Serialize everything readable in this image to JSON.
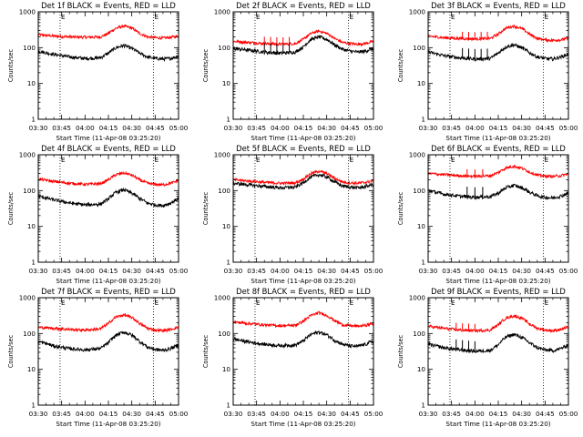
{
  "figure": {
    "xlabel": "Start Time (11-Apr-08 03:25:20)",
    "ylabel": "Counts/sec",
    "x_tick_labels": [
      "03:30",
      "03:45",
      "04:00",
      "04:15",
      "04:30",
      "04:45",
      "05:00"
    ],
    "y_tick_labels": [
      "1",
      "10",
      "100",
      "1000"
    ],
    "marker_label": "E",
    "colors": {
      "events": "#000000",
      "lld": "#ff0000",
      "axes": "#000000",
      "background": "#ffffff"
    }
  },
  "chart_data": [
    {
      "type": "line",
      "title": "Det 1f BLACK = Events, RED = LLD",
      "xlabel": "Start Time (11-Apr-08 03:25:20)",
      "ylabel": "Counts/sec",
      "x_unit": "minutes after 03:30",
      "xlim": [
        0,
        90
      ],
      "ylim": [
        1,
        1000
      ],
      "y_scale": "log",
      "marker_lines_x": [
        14,
        74
      ],
      "series": [
        {
          "name": "LLD",
          "color": "#ff0000",
          "x": [
            0,
            10,
            20,
            30,
            40,
            45,
            50,
            55,
            60,
            65,
            70,
            75,
            80,
            85,
            90
          ],
          "y": [
            230,
            210,
            200,
            195,
            200,
            250,
            350,
            400,
            350,
            250,
            200,
            190,
            185,
            195,
            210
          ]
        },
        {
          "name": "Events",
          "color": "#000000",
          "x": [
            0,
            10,
            20,
            30,
            40,
            45,
            50,
            55,
            60,
            65,
            70,
            75,
            80,
            85,
            90
          ],
          "y": [
            80,
            65,
            55,
            50,
            52,
            70,
            100,
            115,
            95,
            70,
            55,
            50,
            48,
            50,
            58
          ],
          "spikes_x": []
        }
      ]
    },
    {
      "type": "line",
      "title": "Det 2f BLACK = Events, RED = LLD",
      "xlabel": "Start Time (11-Apr-08 03:25:20)",
      "ylabel": "Counts/sec",
      "x_unit": "minutes after 03:30",
      "xlim": [
        0,
        90
      ],
      "ylim": [
        1,
        1000
      ],
      "y_scale": "log",
      "marker_lines_x": [
        14,
        74
      ],
      "series": [
        {
          "name": "LLD",
          "color": "#ff0000",
          "x": [
            0,
            10,
            20,
            30,
            40,
            45,
            50,
            55,
            60,
            65,
            70,
            75,
            80,
            85,
            90
          ],
          "y": [
            150,
            140,
            130,
            125,
            130,
            170,
            250,
            290,
            250,
            180,
            140,
            130,
            125,
            130,
            150
          ]
        },
        {
          "name": "Events",
          "color": "#000000",
          "x": [
            0,
            10,
            20,
            30,
            40,
            45,
            50,
            55,
            60,
            65,
            70,
            75,
            80,
            85,
            90
          ],
          "y": [
            95,
            85,
            75,
            70,
            75,
            105,
            170,
            200,
            170,
            120,
            90,
            80,
            75,
            80,
            95
          ],
          "spikes_x": [
            20,
            24,
            28,
            32,
            36
          ]
        }
      ]
    },
    {
      "type": "line",
      "title": "Det 3f BLACK = Events, RED = LLD",
      "xlabel": "Start Time (11-Apr-08 03:25:20)",
      "ylabel": "Counts/sec",
      "x_unit": "minutes after 03:30",
      "xlim": [
        0,
        90
      ],
      "ylim": [
        1,
        1000
      ],
      "y_scale": "log",
      "marker_lines_x": [
        14,
        74
      ],
      "series": [
        {
          "name": "LLD",
          "color": "#ff0000",
          "x": [
            0,
            10,
            20,
            30,
            40,
            45,
            50,
            55,
            60,
            65,
            70,
            75,
            80,
            85,
            90
          ],
          "y": [
            210,
            190,
            180,
            175,
            180,
            240,
            350,
            400,
            340,
            240,
            180,
            165,
            160,
            165,
            180
          ]
        },
        {
          "name": "Events",
          "color": "#000000",
          "x": [
            0,
            10,
            20,
            30,
            40,
            45,
            50,
            55,
            60,
            65,
            70,
            75,
            80,
            85,
            90
          ],
          "y": [
            75,
            60,
            52,
            48,
            50,
            70,
            105,
            120,
            100,
            72,
            55,
            50,
            48,
            55,
            65
          ],
          "spikes_x": [
            22,
            26,
            30,
            34,
            38
          ]
        }
      ]
    },
    {
      "type": "line",
      "title": "Det 4f BLACK = Events, RED = LLD",
      "xlabel": "Start Time (11-Apr-08 03:25:20)",
      "ylabel": "Counts/sec",
      "x_unit": "minutes after 03:30",
      "xlim": [
        0,
        90
      ],
      "ylim": [
        1,
        1000
      ],
      "y_scale": "log",
      "marker_lines_x": [
        14,
        74
      ],
      "series": [
        {
          "name": "LLD",
          "color": "#ff0000",
          "x": [
            0,
            10,
            20,
            30,
            40,
            45,
            50,
            55,
            60,
            65,
            70,
            75,
            80,
            85,
            90
          ],
          "y": [
            210,
            180,
            160,
            150,
            155,
            200,
            280,
            310,
            270,
            200,
            160,
            150,
            145,
            160,
            190
          ]
        },
        {
          "name": "Events",
          "color": "#000000",
          "x": [
            0,
            10,
            20,
            30,
            40,
            45,
            50,
            55,
            60,
            65,
            70,
            75,
            80,
            85,
            90
          ],
          "y": [
            70,
            55,
            45,
            40,
            42,
            58,
            90,
            105,
            85,
            60,
            45,
            40,
            38,
            45,
            60
          ],
          "spikes_x": []
        }
      ]
    },
    {
      "type": "line",
      "title": "Det 5f BLACK = Events, RED = LLD",
      "xlabel": "Start Time (11-Apr-08 03:25:20)",
      "ylabel": "Counts/sec",
      "x_unit": "minutes after 03:30",
      "xlim": [
        0,
        90
      ],
      "ylim": [
        1,
        1000
      ],
      "y_scale": "log",
      "marker_lines_x": [
        14,
        74
      ],
      "series": [
        {
          "name": "LLD",
          "color": "#ff0000",
          "x": [
            0,
            10,
            20,
            30,
            40,
            45,
            50,
            55,
            60,
            65,
            70,
            75,
            80,
            85,
            90
          ],
          "y": [
            200,
            185,
            170,
            160,
            165,
            210,
            300,
            350,
            300,
            220,
            175,
            165,
            160,
            170,
            190
          ]
        },
        {
          "name": "Events",
          "color": "#000000",
          "x": [
            0,
            10,
            20,
            30,
            40,
            45,
            50,
            55,
            60,
            65,
            70,
            75,
            80,
            85,
            90
          ],
          "y": [
            160,
            145,
            130,
            120,
            125,
            165,
            240,
            280,
            240,
            175,
            135,
            125,
            120,
            130,
            150
          ],
          "spikes_x": []
        }
      ]
    },
    {
      "type": "line",
      "title": "Det 6f BLACK = Events, RED = LLD",
      "xlabel": "Start Time (11-Apr-08 03:25:20)",
      "ylabel": "Counts/sec",
      "x_unit": "minutes after 03:30",
      "xlim": [
        0,
        90
      ],
      "ylim": [
        1,
        1000
      ],
      "y_scale": "log",
      "marker_lines_x": [
        14,
        74
      ],
      "series": [
        {
          "name": "LLD",
          "color": "#ff0000",
          "x": [
            0,
            10,
            20,
            30,
            40,
            45,
            50,
            55,
            60,
            65,
            70,
            75,
            80,
            85,
            90
          ],
          "y": [
            300,
            280,
            260,
            250,
            260,
            320,
            430,
            480,
            420,
            330,
            270,
            255,
            250,
            260,
            290
          ]
        },
        {
          "name": "Events",
          "color": "#000000",
          "x": [
            0,
            10,
            20,
            30,
            40,
            45,
            50,
            55,
            60,
            65,
            70,
            75,
            80,
            85,
            90
          ],
          "y": [
            100,
            80,
            70,
            65,
            68,
            85,
            120,
            140,
            120,
            90,
            72,
            65,
            62,
            70,
            85
          ],
          "spikes_x": [
            25,
            30,
            35
          ]
        }
      ]
    },
    {
      "type": "line",
      "title": "Det 7f BLACK = Events, RED = LLD",
      "xlabel": "Start Time (11-Apr-08 03:25:20)",
      "ylabel": "Counts/sec",
      "x_unit": "minutes after 03:30",
      "xlim": [
        0,
        90
      ],
      "ylim": [
        1,
        1000
      ],
      "y_scale": "log",
      "marker_lines_x": [
        14,
        74
      ],
      "series": [
        {
          "name": "LLD",
          "color": "#ff0000",
          "x": [
            0,
            10,
            20,
            30,
            40,
            45,
            50,
            55,
            60,
            65,
            70,
            75,
            80,
            85,
            90
          ],
          "y": [
            150,
            140,
            130,
            125,
            135,
            190,
            290,
            330,
            280,
            190,
            140,
            125,
            120,
            130,
            150
          ]
        },
        {
          "name": "Events",
          "color": "#000000",
          "x": [
            0,
            10,
            20,
            30,
            40,
            45,
            50,
            55,
            60,
            65,
            70,
            75,
            80,
            85,
            90
          ],
          "y": [
            60,
            45,
            38,
            35,
            38,
            55,
            90,
            110,
            90,
            60,
            42,
            36,
            34,
            38,
            48
          ],
          "spikes_x": []
        }
      ]
    },
    {
      "type": "line",
      "title": "Det 8f BLACK = Events, RED = LLD",
      "xlabel": "Start Time (11-Apr-08 03:25:20)",
      "ylabel": "Counts/sec",
      "x_unit": "minutes after 03:30",
      "xlim": [
        0,
        90
      ],
      "ylim": [
        1,
        1000
      ],
      "y_scale": "log",
      "marker_lines_x": [
        14,
        74
      ],
      "series": [
        {
          "name": "LLD",
          "color": "#ff0000",
          "x": [
            0,
            10,
            20,
            30,
            40,
            45,
            50,
            55,
            60,
            65,
            70,
            75,
            80,
            85,
            90
          ],
          "y": [
            210,
            190,
            175,
            165,
            170,
            220,
            320,
            380,
            320,
            230,
            175,
            165,
            160,
            170,
            190
          ]
        },
        {
          "name": "Events",
          "color": "#000000",
          "x": [
            0,
            10,
            20,
            30,
            40,
            45,
            50,
            55,
            60,
            65,
            70,
            75,
            80,
            85,
            90
          ],
          "y": [
            70,
            58,
            50,
            46,
            48,
            62,
            95,
            110,
            92,
            65,
            50,
            45,
            44,
            50,
            62
          ],
          "spikes_x": []
        }
      ]
    },
    {
      "type": "line",
      "title": "Det 9f BLACK = Events, RED = LLD",
      "xlabel": "Start Time (11-Apr-08 03:25:20)",
      "ylabel": "Counts/sec",
      "x_unit": "minutes after 03:30",
      "xlim": [
        0,
        90
      ],
      "ylim": [
        1,
        1000
      ],
      "y_scale": "log",
      "marker_lines_x": [
        14,
        74
      ],
      "series": [
        {
          "name": "LLD",
          "color": "#ff0000",
          "x": [
            0,
            10,
            20,
            30,
            40,
            45,
            50,
            55,
            60,
            65,
            70,
            75,
            80,
            85,
            90
          ],
          "y": [
            160,
            140,
            125,
            120,
            125,
            175,
            270,
            310,
            270,
            185,
            140,
            125,
            120,
            130,
            150
          ]
        },
        {
          "name": "Events",
          "color": "#000000",
          "x": [
            0,
            10,
            20,
            30,
            40,
            45,
            50,
            55,
            60,
            65,
            70,
            75,
            80,
            85,
            90
          ],
          "y": [
            50,
            40,
            35,
            32,
            34,
            48,
            80,
            95,
            78,
            55,
            40,
            35,
            33,
            38,
            48
          ],
          "spikes_x": [
            18,
            22,
            26,
            30
          ]
        }
      ]
    }
  ]
}
